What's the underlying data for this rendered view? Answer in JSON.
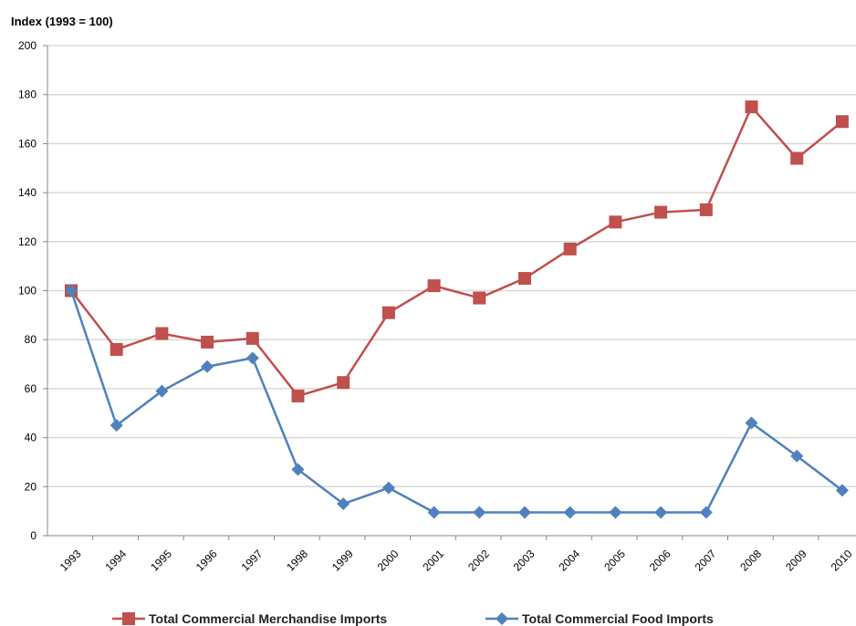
{
  "chart_data": {
    "type": "line",
    "title": "",
    "xlabel": "",
    "ylabel": "Index (1993 = 100)",
    "x": [
      "1993",
      "1994",
      "1995",
      "1996",
      "1997",
      "1998",
      "1999",
      "2000",
      "2001",
      "2002",
      "2003",
      "2004",
      "2005",
      "2006",
      "2007",
      "2008",
      "2009",
      "2010"
    ],
    "ylim": [
      0,
      200
    ],
    "yticks": [
      0,
      20,
      40,
      60,
      80,
      100,
      120,
      140,
      160,
      180,
      200
    ],
    "grid": true,
    "legend_position": "bottom",
    "series": [
      {
        "name": "Total Commercial Merchandise Imports",
        "color": "#c0504d",
        "marker": "square",
        "values": [
          100,
          76,
          82.5,
          79,
          80.5,
          57,
          62.5,
          91,
          102,
          97,
          105,
          117,
          128,
          132,
          133,
          175,
          154,
          169
        ]
      },
      {
        "name": "Total Commercial Food Imports",
        "color": "#4f81bd",
        "marker": "diamond",
        "values": [
          100,
          45,
          59,
          69,
          72.5,
          27,
          13,
          19.5,
          9.5,
          9.5,
          9.5,
          9.5,
          9.5,
          9.5,
          9.5,
          46,
          32.5,
          18.5
        ]
      }
    ],
    "gridline_color": "#d9d9d9",
    "axis_color": "#888888"
  }
}
